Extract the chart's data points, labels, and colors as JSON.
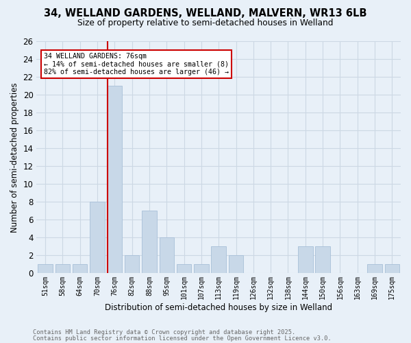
{
  "title1": "34, WELLAND GARDENS, WELLAND, MALVERN, WR13 6LB",
  "title2": "Size of property relative to semi-detached houses in Welland",
  "xlabel": "Distribution of semi-detached houses by size in Welland",
  "ylabel": "Number of semi-detached properties",
  "footer1": "Contains HM Land Registry data © Crown copyright and database right 2025.",
  "footer2": "Contains public sector information licensed under the Open Government Licence v3.0.",
  "annotation_title": "34 WELLAND GARDENS: 76sqm",
  "annotation_line2": "← 14% of semi-detached houses are smaller (8)",
  "annotation_line3": "82% of semi-detached houses are larger (46) →",
  "bar_color": "#c8d8e8",
  "bar_edge_color": "#a8c0d8",
  "subject_line_color": "#cc0000",
  "annotation_box_edge": "#cc0000",
  "grid_color": "#ccd8e4",
  "bg_color": "#e8f0f8",
  "categories": [
    "51sqm",
    "58sqm",
    "64sqm",
    "70sqm",
    "76sqm",
    "82sqm",
    "88sqm",
    "95sqm",
    "101sqm",
    "107sqm",
    "113sqm",
    "119sqm",
    "126sqm",
    "132sqm",
    "138sqm",
    "144sqm",
    "150sqm",
    "156sqm",
    "163sqm",
    "169sqm",
    "175sqm"
  ],
  "values": [
    1,
    1,
    1,
    8,
    21,
    2,
    7,
    4,
    1,
    1,
    3,
    2,
    0,
    0,
    0,
    3,
    3,
    0,
    0,
    1,
    1
  ],
  "ylim": [
    0,
    26
  ],
  "yticks": [
    0,
    2,
    4,
    6,
    8,
    10,
    12,
    14,
    16,
    18,
    20,
    22,
    24,
    26
  ]
}
